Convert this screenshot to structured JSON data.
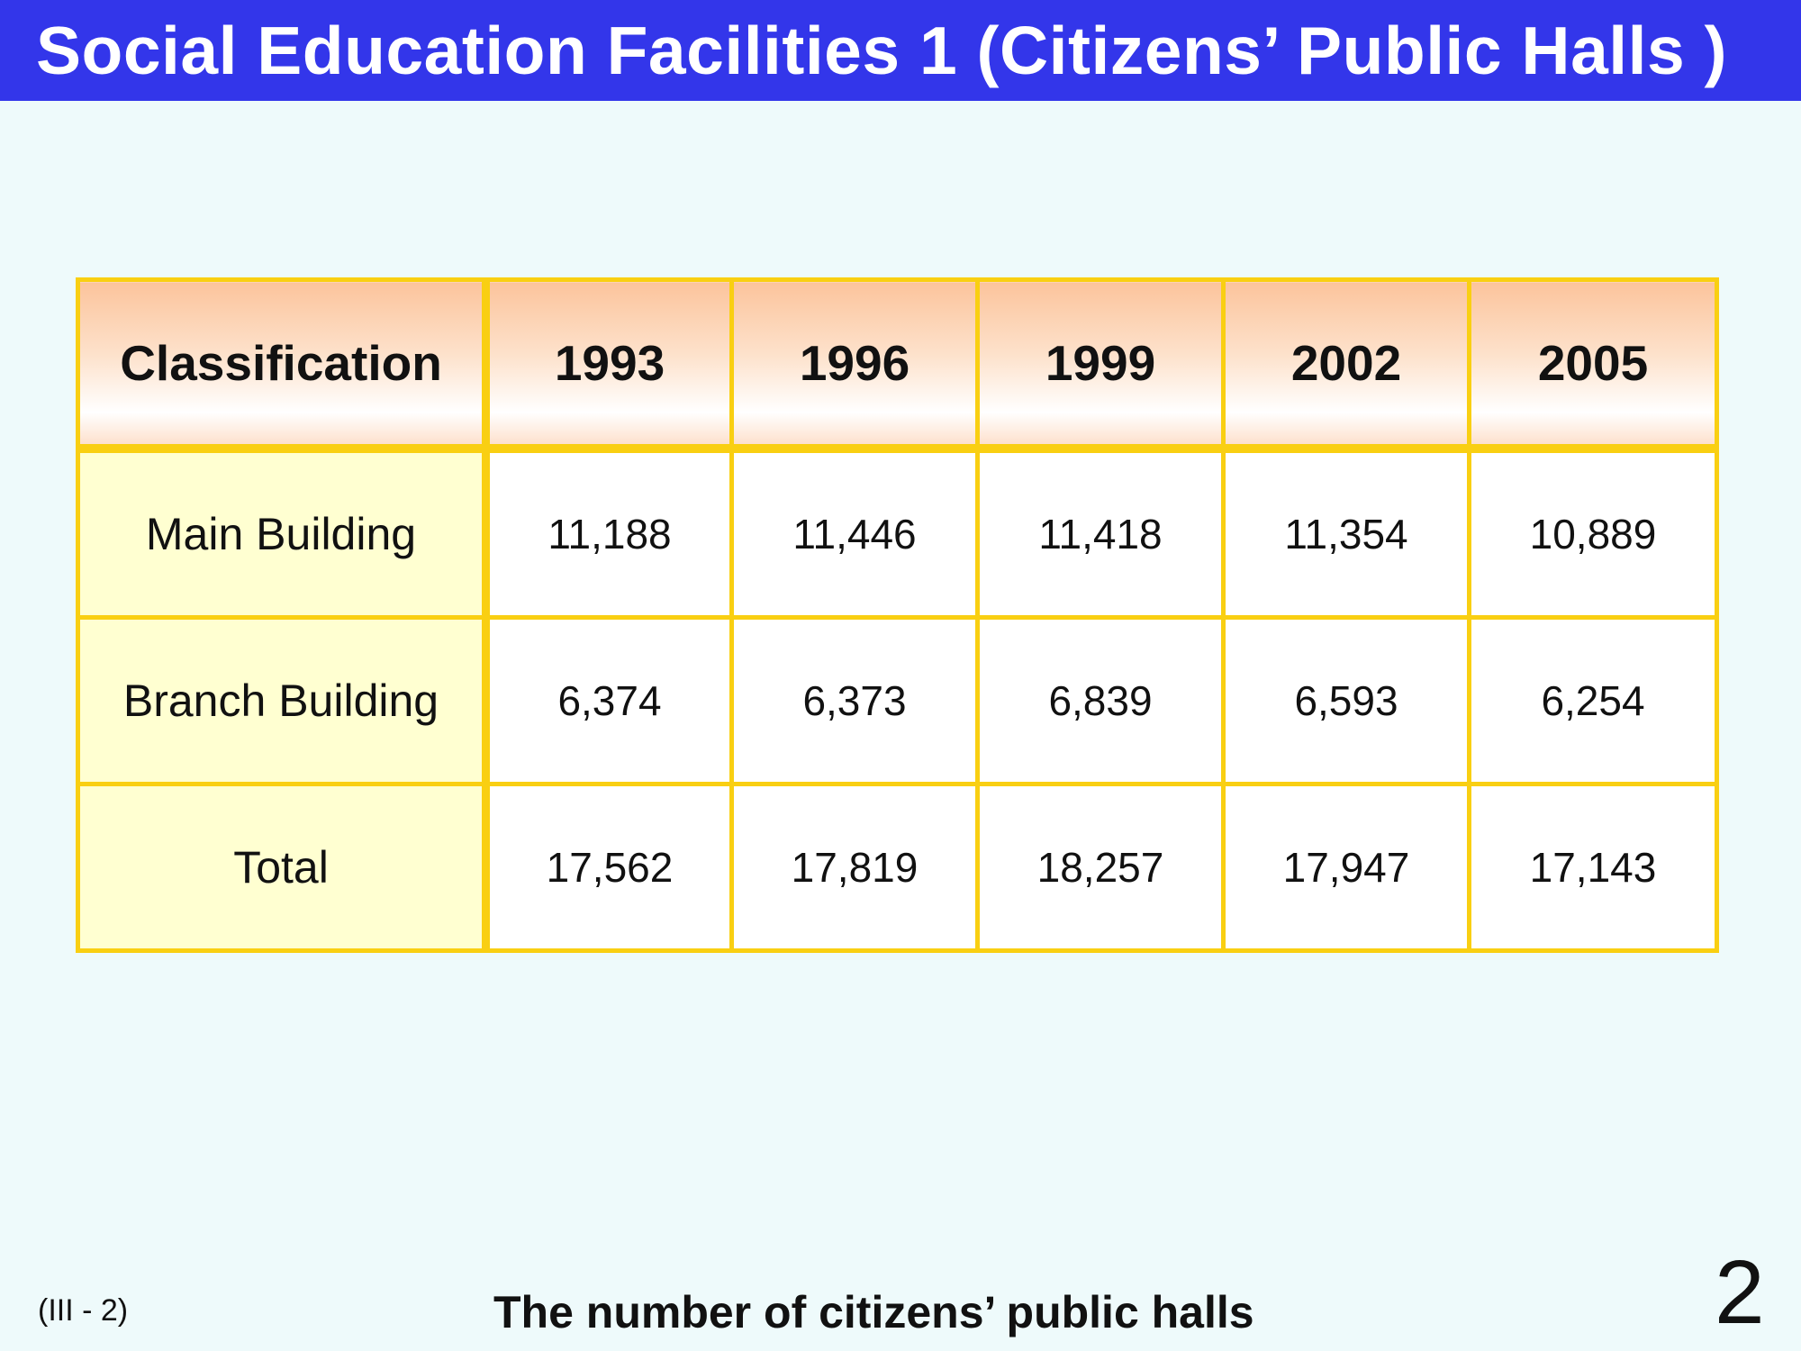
{
  "header": {
    "title": "Social Education Facilities 1 (Citizens’ Public Halls )"
  },
  "table": {
    "columns": [
      "Classification",
      "1993",
      "1996",
      "1999",
      "2002",
      "2005"
    ],
    "rows": [
      {
        "label": "Main Building",
        "values": [
          "11,188",
          "11,446",
          "11,418",
          "11,354",
          "10,889"
        ]
      },
      {
        "label": "Branch Building",
        "values": [
          "6,374",
          "6,373",
          "6,839",
          "6,593",
          "6,254"
        ]
      },
      {
        "label": "Total",
        "values": [
          "17,562",
          "17,819",
          "18,257",
          "17,947",
          "17,143"
        ]
      }
    ]
  },
  "footer": {
    "code": "(III - 2)",
    "caption": "The number of citizens’ public halls",
    "page_number": "2"
  },
  "colors": {
    "title_bar": "#3336ea",
    "table_border": "#f9cf12",
    "label_cell": "#ffffd1",
    "header_gradient_top": "#fcc49c",
    "background": "#eefafb"
  }
}
